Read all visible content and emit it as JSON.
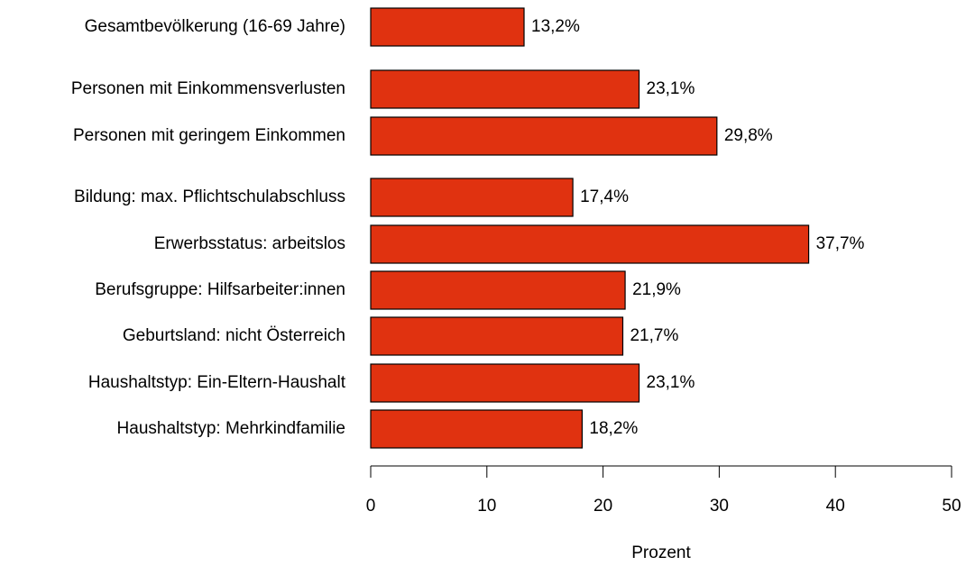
{
  "chart_data": {
    "type": "barh",
    "categories": [
      "Gesamtbevölkerung (16-69 Jahre)",
      "Personen mit Einkommensverlusten",
      "Personen mit geringem Einkommen",
      "Bildung: max. Pflichtschulabschluss",
      "Erwerbsstatus: arbeitslos",
      "Berufsgruppe: Hilfsarbeiter:innen",
      "Geburtsland: nicht Österreich",
      "Haushaltstyp: Ein-Eltern-Haushalt",
      "Haushaltstyp: Mehrkindfamilie"
    ],
    "values": [
      13.2,
      23.1,
      29.8,
      17.4,
      37.7,
      21.9,
      21.7,
      23.1,
      18.2
    ],
    "value_labels": [
      "13,2%",
      "23,1%",
      "29,8%",
      "17,4%",
      "37,7%",
      "21,9%",
      "21,7%",
      "23,1%",
      "18,2%"
    ],
    "color": "#e03210",
    "xlabel": "Prozent",
    "xlim": [
      0,
      50
    ],
    "xticks": [
      0,
      10,
      20,
      30,
      40,
      50
    ]
  }
}
